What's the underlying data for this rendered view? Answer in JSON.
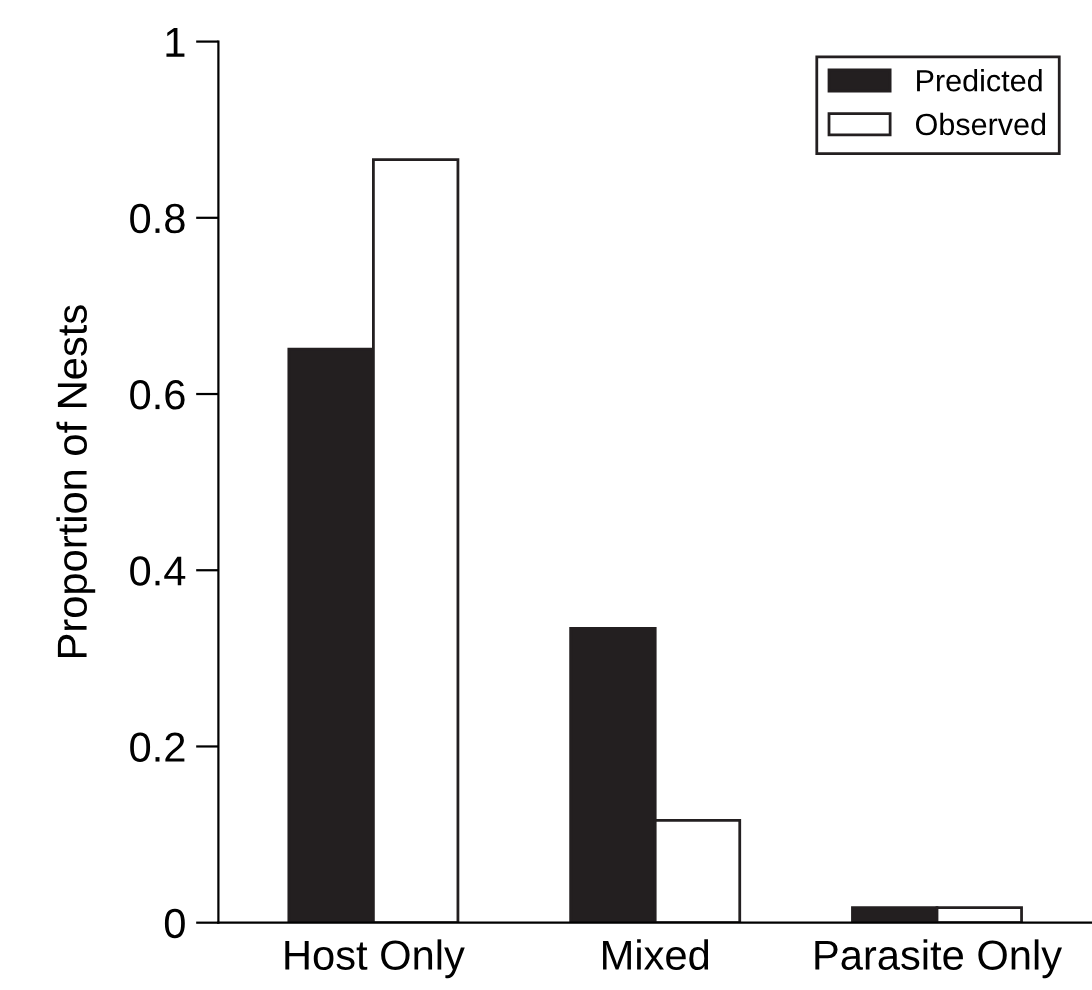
{
  "chart_data": {
    "type": "bar",
    "ylabel": "Proportion of Nests",
    "categories": [
      "Host Only",
      "Mixed",
      "Parasite Only"
    ],
    "series": [
      {
        "name": "Predicted",
        "color": "#231f20",
        "values": [
          0.651,
          0.334,
          0.017
        ]
      },
      {
        "name": "Observed",
        "color": "#ffffff",
        "values": [
          0.866,
          0.116,
          0.017
        ]
      }
    ],
    "ylim": [
      0,
      1
    ],
    "yticks": [
      0,
      0.2,
      0.4,
      0.6,
      0.8,
      1
    ],
    "grid": false,
    "legend": "top right"
  }
}
